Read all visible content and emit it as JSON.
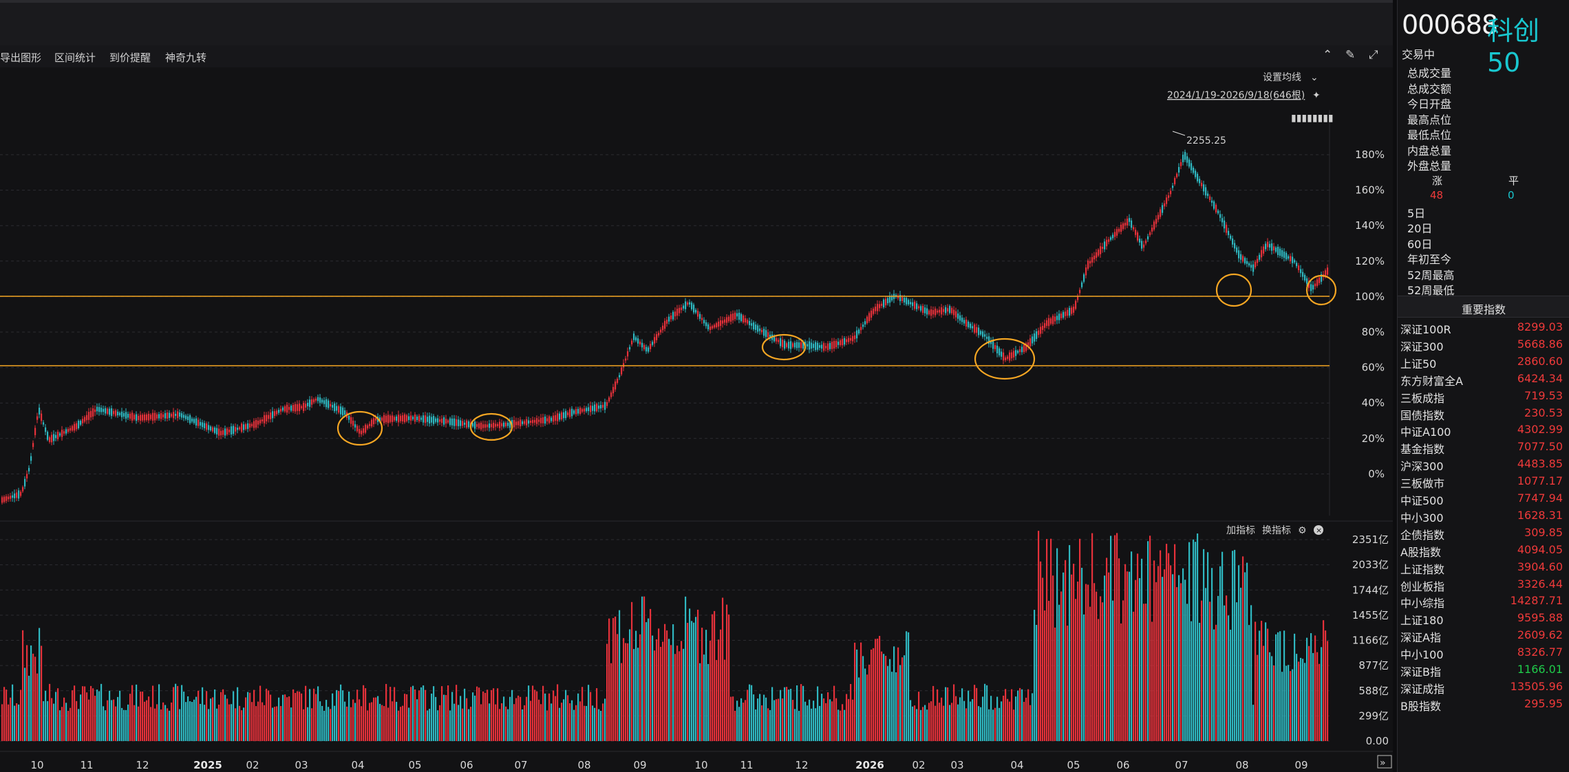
{
  "toolbar": {
    "items": [
      "导出图形",
      "区间统计",
      "到价提醒",
      "神奇九转"
    ],
    "icons": [
      "chevron-up-circle-icon",
      "brush-icon",
      "expand-icon"
    ]
  },
  "chart": {
    "ma_setting": "设置均线",
    "range": "2024/1/19-2026/9/18(646根)",
    "high_label": "2255.25",
    "overlay_text": "▮▮▮▮▮▮▮▮",
    "pct_axis": [
      "180%",
      "160%",
      "140%",
      "120%",
      "100%",
      "80%",
      "60%",
      "40%",
      "20%",
      "0%"
    ],
    "vol_axis": [
      "2351亿",
      "2033亿",
      "1744亿",
      "1455亿",
      "1166亿",
      "877亿",
      "588亿",
      "299亿",
      "0.00"
    ],
    "x_axis": [
      "10",
      "11",
      "12",
      "2025",
      "02",
      "03",
      "04",
      "05",
      "06",
      "07",
      "08",
      "09",
      "10",
      "11",
      "12",
      "2026",
      "02",
      "03",
      "04",
      "05",
      "06",
      "07",
      "08",
      "09"
    ],
    "indicator_add": "加指标",
    "indicator_switch": "换指标",
    "colors": {
      "up": "#e5313a",
      "down": "#2fb8c1",
      "hline": "#f5a623",
      "circle": "#f5a623"
    }
  },
  "panel": {
    "code": "000688",
    "name": "科创50",
    "status": "交易中",
    "stats": [
      "总成交量",
      "总成交额",
      "今日开盘",
      "最高点位",
      "最低点位",
      "内盘总量",
      "外盘总量"
    ],
    "rise_label": "涨",
    "flat_label": "平",
    "rise_count": "48",
    "flat_count": "0",
    "periods": [
      "5日",
      "20日",
      "60日",
      "年初至今",
      "52周最高",
      "52周最低"
    ],
    "section_title": "重要指数",
    "indices": [
      {
        "name": "深证100R",
        "value": "8299.03",
        "color": "#ef3a3a"
      },
      {
        "name": "深证300",
        "value": "5668.86",
        "color": "#ef3a3a"
      },
      {
        "name": "上证50",
        "value": "2860.60",
        "color": "#ef3a3a"
      },
      {
        "name": "东方财富全A",
        "value": "6424.34",
        "color": "#ef3a3a"
      },
      {
        "name": "三板成指",
        "value": "719.53",
        "color": "#ef3a3a"
      },
      {
        "name": "国债指数",
        "value": "230.53",
        "color": "#ef3a3a"
      },
      {
        "name": "中证A100",
        "value": "4302.99",
        "color": "#ef3a3a"
      },
      {
        "name": "基金指数",
        "value": "7077.50",
        "color": "#ef3a3a"
      },
      {
        "name": "沪深300",
        "value": "4483.85",
        "color": "#ef3a3a"
      },
      {
        "name": "三板做市",
        "value": "1077.17",
        "color": "#ef3a3a"
      },
      {
        "name": "中证500",
        "value": "7747.94",
        "color": "#ef3a3a"
      },
      {
        "name": "中小300",
        "value": "1628.31",
        "color": "#ef3a3a"
      },
      {
        "name": "企债指数",
        "value": "309.85",
        "color": "#ef3a3a"
      },
      {
        "name": "A股指数",
        "value": "4094.05",
        "color": "#ef3a3a"
      },
      {
        "name": "上证指数",
        "value": "3904.60",
        "color": "#ef3a3a"
      },
      {
        "name": "创业板指",
        "value": "3326.44",
        "color": "#ef3a3a"
      },
      {
        "name": "中小综指",
        "value": "14287.71",
        "color": "#ef3a3a"
      },
      {
        "name": "上证180",
        "value": "9595.88",
        "color": "#ef3a3a"
      },
      {
        "name": "深证A指",
        "value": "2609.62",
        "color": "#ef3a3a"
      },
      {
        "name": "中小100",
        "value": "8326.77",
        "color": "#ef3a3a"
      },
      {
        "name": "深证B指",
        "value": "1166.01",
        "color": "#1fcc4a"
      },
      {
        "name": "深证成指",
        "value": "13505.96",
        "color": "#ef3a3a"
      },
      {
        "name": "B股指数",
        "value": "295.95",
        "color": "#ef3a3a"
      }
    ]
  }
}
